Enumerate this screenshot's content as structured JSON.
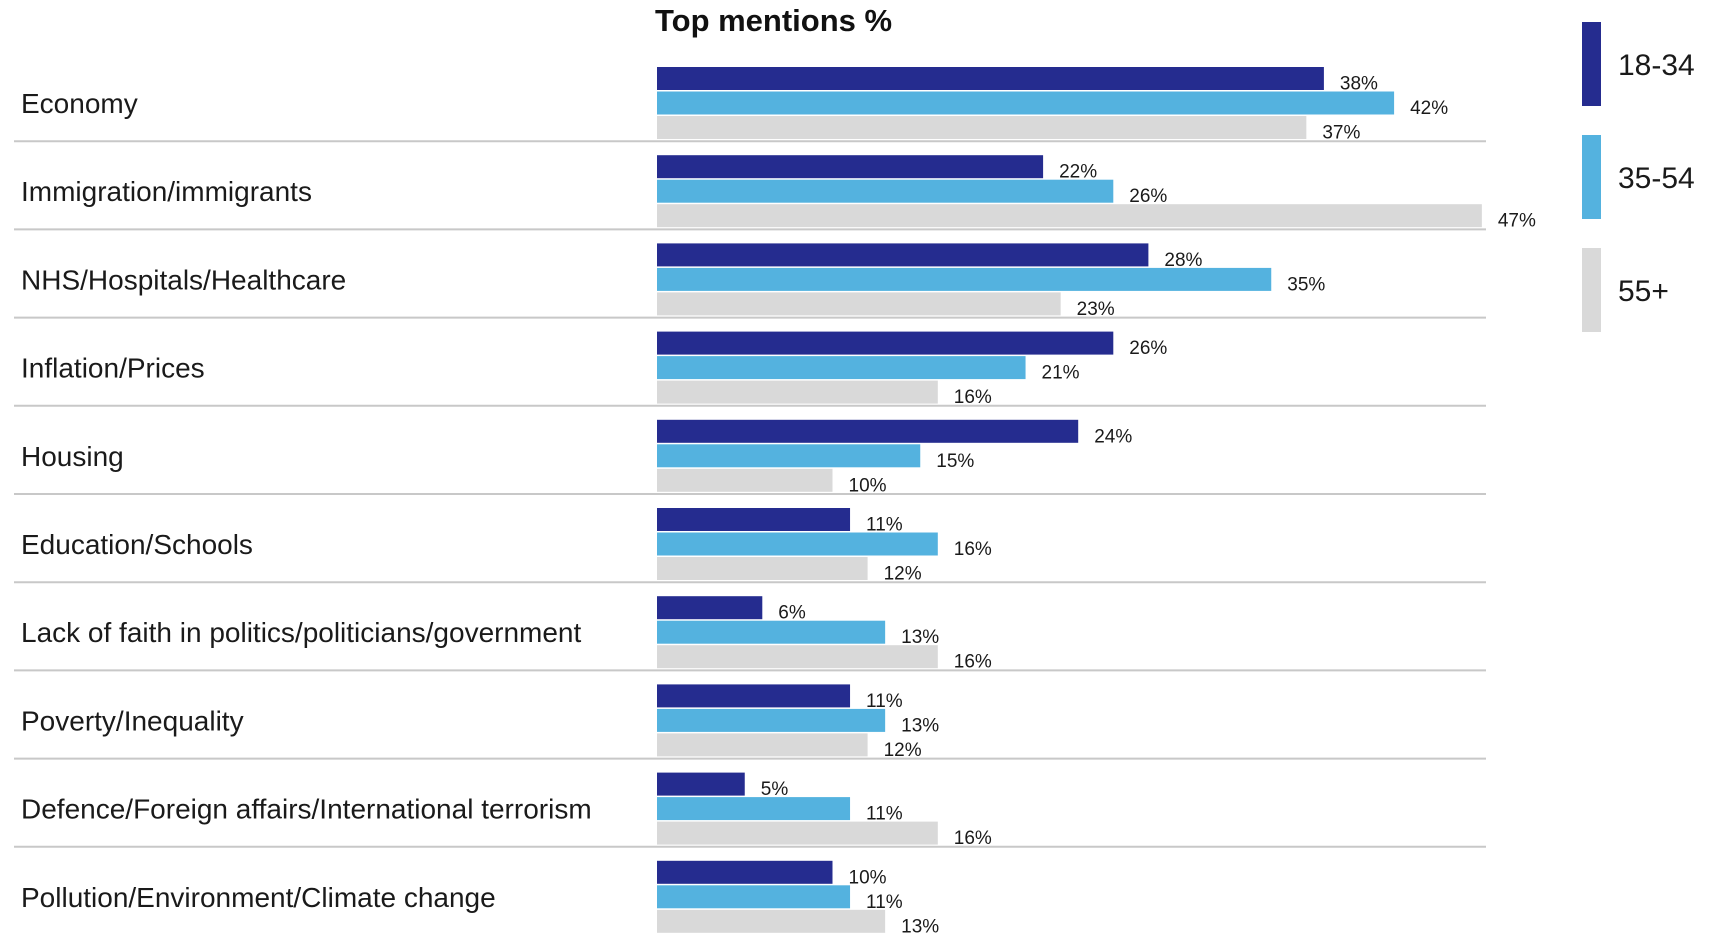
{
  "chart_data": {
    "type": "bar",
    "orientation": "horizontal",
    "title": "Top mentions %",
    "xlabel": "",
    "ylabel": "",
    "xlim": [
      0,
      47
    ],
    "grid": false,
    "legend_position": "top-right",
    "categories": [
      "Economy",
      "Immigration/immigrants",
      "NHS/Hospitals/Healthcare",
      "Inflation/Prices",
      "Housing",
      "Education/Schools",
      "Lack of faith in politics/politicians/government",
      "Poverty/Inequality",
      "Defence/Foreign affairs/International terrorism",
      "Pollution/Environment/Climate change"
    ],
    "series": [
      {
        "name": "18-34",
        "color": "#252c8f",
        "values": [
          38,
          22,
          28,
          26,
          24,
          11,
          6,
          11,
          5,
          10
        ],
        "labels": [
          "38%",
          "22%",
          "28%",
          "26%",
          "24%",
          "11%",
          "6%",
          "11%",
          "5%",
          "10%"
        ]
      },
      {
        "name": "35-54",
        "color": "#54b2df",
        "values": [
          42,
          26,
          35,
          21,
          15,
          16,
          13,
          13,
          11,
          11
        ],
        "labels": [
          "42%",
          "26%",
          "35%",
          "21%",
          "15%",
          "16%",
          "13%",
          "13%",
          "11%",
          "11%"
        ]
      },
      {
        "name": "55+",
        "color": "#d9d9d9",
        "values": [
          37,
          47,
          23,
          16,
          10,
          12,
          16,
          12,
          16,
          13
        ],
        "labels": [
          "37%",
          "47%",
          "23%",
          "16%",
          "10%",
          "12%",
          "16%",
          "12%",
          "16%",
          "13%"
        ]
      }
    ]
  }
}
